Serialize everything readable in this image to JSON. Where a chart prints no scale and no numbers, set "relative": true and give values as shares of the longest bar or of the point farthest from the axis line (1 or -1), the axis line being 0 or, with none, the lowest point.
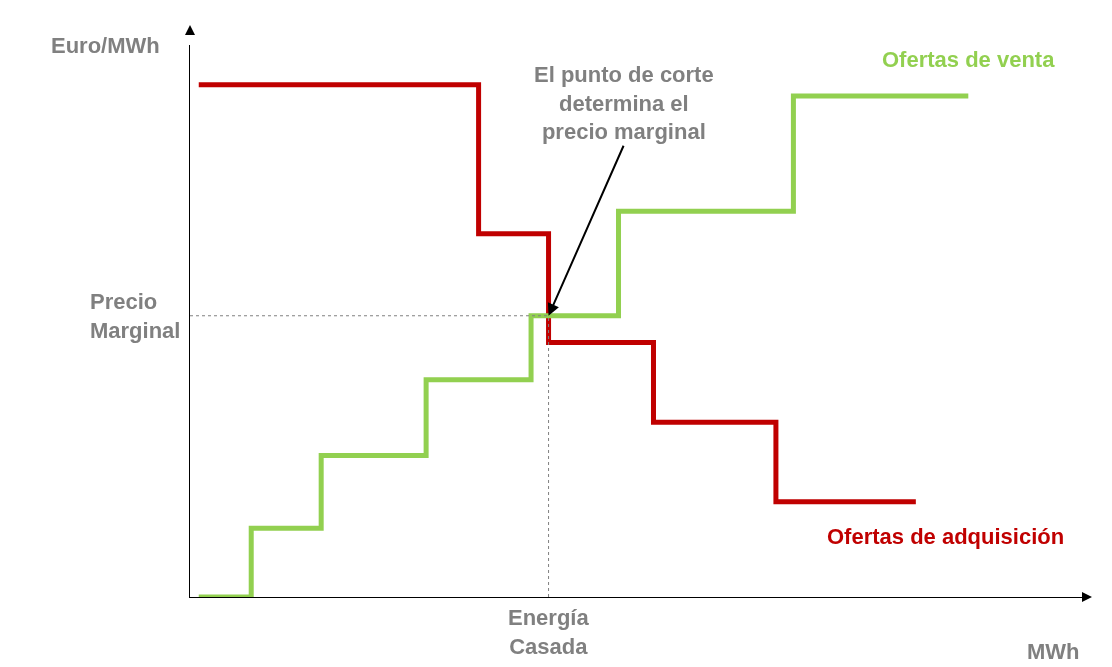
{
  "chart_data": {
    "type": "step",
    "relative": true,
    "ylabel": "Euro/MWh",
    "xlabel": "MWh",
    "categories": [
      null,
      null,
      null,
      null,
      null,
      null,
      null,
      null,
      null,
      null,
      null,
      null,
      null,
      null,
      null,
      null,
      null,
      null,
      null,
      null,
      null,
      null,
      null,
      null,
      null,
      null,
      null,
      null,
      null,
      null,
      null,
      null,
      null,
      null,
      null,
      null,
      null,
      null,
      null,
      null,
      null,
      null,
      null,
      null,
      null,
      null,
      null,
      null,
      null,
      null,
      null
    ],
    "series": [
      {
        "name": "Ofertas de adquisición",
        "color": "#c00000",
        "values": [
          1,
          1,
          1,
          1,
          1,
          1,
          1,
          1,
          1,
          1,
          1,
          1,
          1,
          1,
          1,
          1,
          0.709,
          0.709,
          0.709,
          0.709,
          0.497,
          0.497,
          0.497,
          0.497,
          0.497,
          0.497,
          0.341,
          0.341,
          0.341,
          0.341,
          0.341,
          0.341,
          0.341,
          0.186,
          0.186,
          0.186,
          0.186,
          0.186,
          0.186,
          0.186,
          0.186,
          0.186,
          null,
          null,
          null,
          null,
          null,
          null,
          null,
          null,
          null
        ]
      },
      {
        "name": "Ofertas de venta",
        "color": "#92d050",
        "values": [
          0,
          0,
          0,
          0.134,
          0.134,
          0.134,
          0.134,
          0.276,
          0.276,
          0.276,
          0.276,
          0.276,
          0.276,
          0.424,
          0.424,
          0.424,
          0.424,
          0.424,
          0.424,
          0.549,
          0.549,
          0.549,
          0.549,
          0.549,
          0.753,
          0.753,
          0.753,
          0.753,
          0.753,
          0.753,
          0.753,
          0.753,
          0.753,
          0.753,
          0.978,
          0.978,
          0.978,
          0.978,
          0.978,
          0.978,
          0.978,
          0.978,
          0.978,
          0.978,
          0.978,
          null,
          null,
          null,
          null,
          null,
          null
        ]
      }
    ],
    "ref_lines": [
      {
        "axis": "y",
        "value": 0.549,
        "label": "Precio\nMarginal",
        "color": "#808080",
        "line_style": "dotted"
      },
      {
        "axis": "x",
        "label": "Energía\nCasada",
        "color": "#808080",
        "line_style": "dotted"
      }
    ],
    "annotations": [
      "El punto de corte\ndetermina el\nprecio marginal"
    ],
    "grid": false,
    "legend": false
  }
}
